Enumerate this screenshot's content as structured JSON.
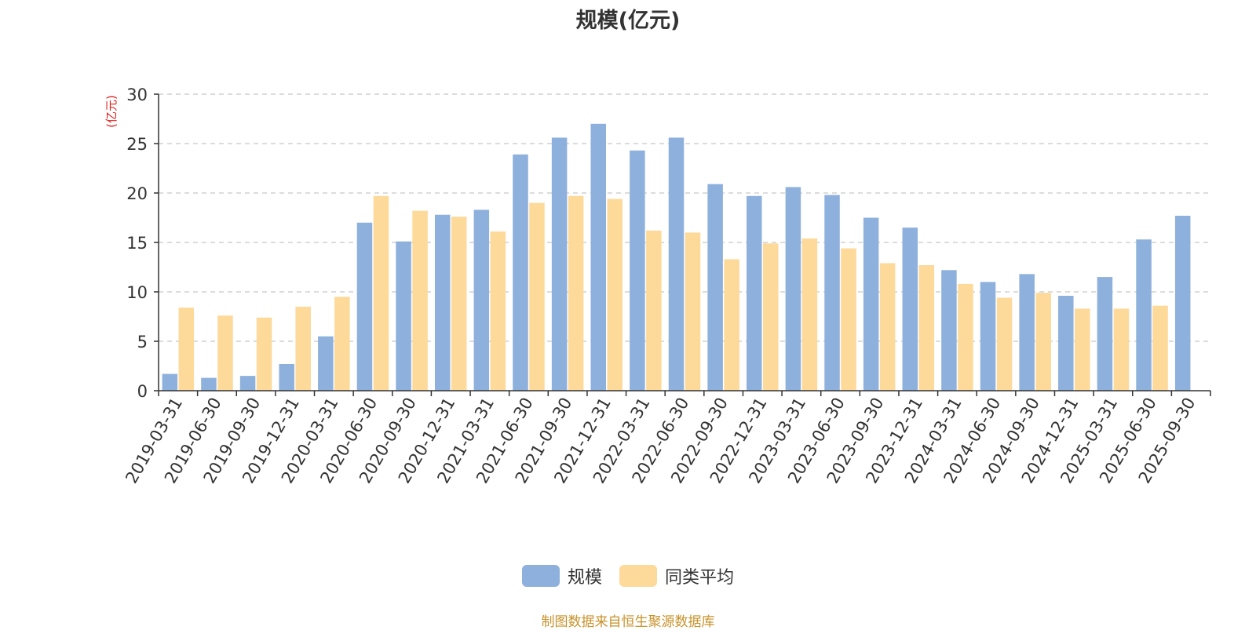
{
  "chart_data": {
    "type": "bar",
    "title": "规模(亿元)",
    "ylabel": "(亿元)",
    "xlabel": "",
    "ylim": [
      0,
      30
    ],
    "yticks": [
      0,
      5,
      10,
      15,
      20,
      25,
      30
    ],
    "grid": true,
    "legend_position": "bottom",
    "categories": [
      "2019-03-31",
      "2019-06-30",
      "2019-09-30",
      "2019-12-31",
      "2020-03-31",
      "2020-06-30",
      "2020-09-30",
      "2020-12-31",
      "2021-03-31",
      "2021-06-30",
      "2021-09-30",
      "2021-12-31",
      "2022-03-31",
      "2022-06-30",
      "2022-09-30",
      "2022-12-31",
      "2023-03-31",
      "2023-06-30",
      "2023-09-30",
      "2023-12-31",
      "2024-03-31",
      "2024-06-30",
      "2024-09-30",
      "2024-12-31",
      "2025-03-31",
      "2025-06-30",
      "2025-09-30"
    ],
    "series": [
      {
        "name": "规模",
        "color": "#8eb0dc",
        "values": [
          1.7,
          1.3,
          1.5,
          2.7,
          5.5,
          17.0,
          15.1,
          17.8,
          18.3,
          23.9,
          25.6,
          27.0,
          24.3,
          25.6,
          20.9,
          19.7,
          20.6,
          19.8,
          17.5,
          16.5,
          12.2,
          11.0,
          11.8,
          9.6,
          11.5,
          15.3,
          17.7
        ]
      },
      {
        "name": "同类平均",
        "color": "#fdd99a",
        "values": [
          8.4,
          7.6,
          7.4,
          8.5,
          9.5,
          19.7,
          18.2,
          17.6,
          16.1,
          19.0,
          19.7,
          19.4,
          16.2,
          16.0,
          13.3,
          14.9,
          15.4,
          14.4,
          12.9,
          12.7,
          10.8,
          9.4,
          9.9,
          8.3,
          8.3,
          8.6,
          null
        ]
      }
    ]
  },
  "source_text": "制图数据来自恒生聚源数据库"
}
